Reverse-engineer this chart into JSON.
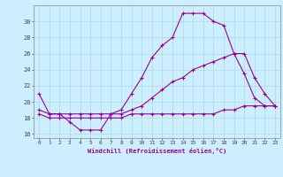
{
  "xlabel": "Windchill (Refroidissement éolien,°C)",
  "bg_color": "#cceeff",
  "line_color": "#990099",
  "grid_color": "#aadddd",
  "xlim": [
    -0.5,
    23.5
  ],
  "ylim": [
    15.5,
    32
  ],
  "xticks": [
    0,
    1,
    2,
    3,
    4,
    5,
    6,
    7,
    8,
    9,
    10,
    11,
    12,
    13,
    14,
    15,
    16,
    17,
    18,
    19,
    20,
    21,
    22,
    23
  ],
  "yticks": [
    16,
    18,
    20,
    22,
    24,
    26,
    28,
    30
  ],
  "line1_x": [
    0,
    1,
    2,
    3,
    4,
    5,
    6,
    7,
    8,
    9,
    10,
    11,
    12,
    13,
    14,
    15,
    16,
    17,
    18,
    19,
    20,
    21,
    22,
    23
  ],
  "line1_y": [
    21,
    18.5,
    18.5,
    17.5,
    16.5,
    16.5,
    16.5,
    18.5,
    19,
    21,
    23,
    25.5,
    27,
    28,
    31,
    31,
    31,
    30,
    29.5,
    26,
    23.5,
    20.5,
    19.5,
    19.5
  ],
  "line2_x": [
    0,
    1,
    2,
    3,
    4,
    5,
    6,
    7,
    8,
    9,
    10,
    11,
    12,
    13,
    14,
    15,
    16,
    17,
    18,
    19,
    20,
    21,
    22,
    23
  ],
  "line2_y": [
    19,
    18.5,
    18.5,
    18.5,
    18.5,
    18.5,
    18.5,
    18.5,
    18.5,
    19,
    19.5,
    20.5,
    21.5,
    22.5,
    23,
    24,
    24.5,
    25,
    25.5,
    26,
    26,
    23,
    21,
    19.5
  ],
  "line3_x": [
    0,
    1,
    2,
    3,
    4,
    5,
    6,
    7,
    8,
    9,
    10,
    11,
    12,
    13,
    14,
    15,
    16,
    17,
    18,
    19,
    20,
    21,
    22,
    23
  ],
  "line3_y": [
    18.5,
    18,
    18,
    18,
    18,
    18,
    18,
    18,
    18,
    18.5,
    18.5,
    18.5,
    18.5,
    18.5,
    18.5,
    18.5,
    18.5,
    18.5,
    19,
    19,
    19.5,
    19.5,
    19.5,
    19.5
  ]
}
